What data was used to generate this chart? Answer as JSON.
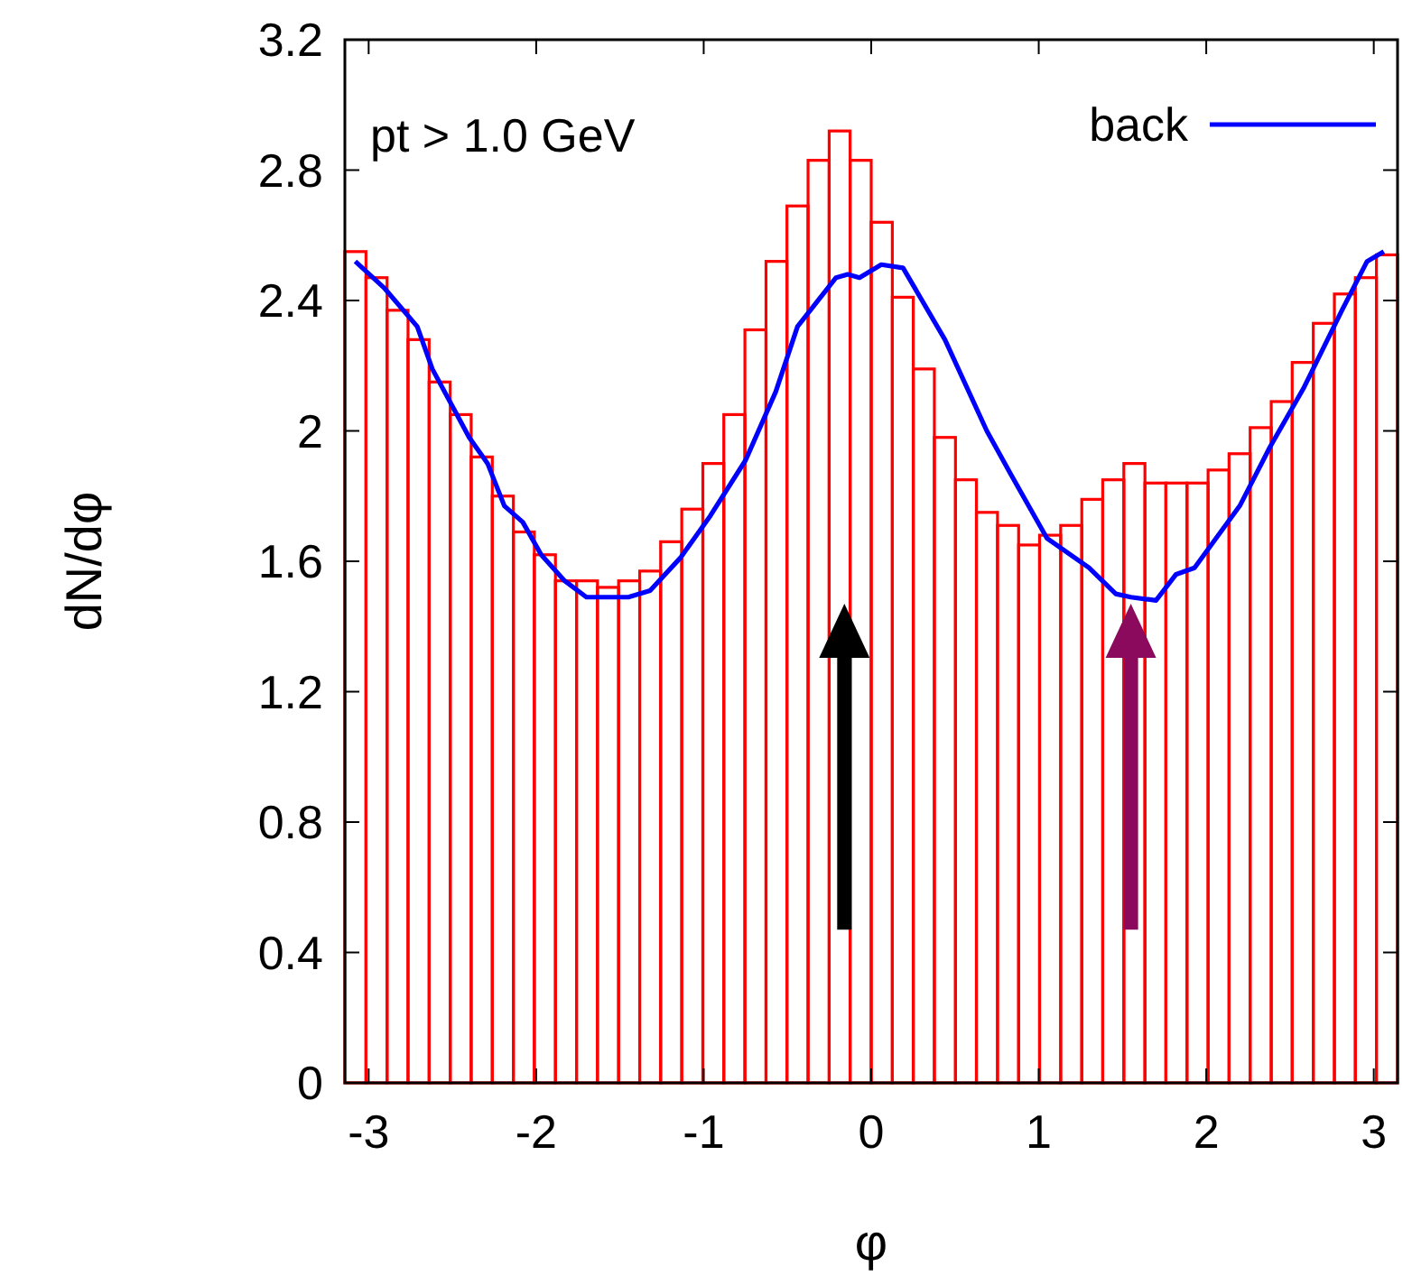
{
  "chart_data": {
    "type": "histogram",
    "xlabel": "φ",
    "ylabel": "dN/dφ",
    "annotations": [
      "pt > 1.0 GeV"
    ],
    "xlim": [
      -3.142,
      3.142
    ],
    "xticks": [
      -3,
      -2,
      -1,
      0,
      1,
      2,
      3
    ],
    "ylim": [
      0,
      3.2
    ],
    "yticks": [
      0,
      0.4,
      0.8,
      1.2,
      1.6,
      2,
      2.4,
      2.8,
      3.2
    ],
    "grid": false,
    "legend": "top right",
    "series": [
      {
        "color": "#ff0000",
        "bins": [
          -3.142,
          -3.016,
          -2.89,
          -2.765,
          -2.639,
          -2.513,
          -2.388,
          -2.262,
          -2.136,
          -2.011,
          -1.885,
          -1.759,
          -1.634,
          -1.508,
          -1.382,
          -1.257,
          -1.131,
          -1.005,
          -0.88,
          -0.754,
          -0.628,
          -0.503,
          -0.377,
          -0.251,
          -0.126,
          0,
          0.126,
          0.251,
          0.377,
          0.503,
          0.628,
          0.754,
          0.88,
          1.005,
          1.131,
          1.257,
          1.382,
          1.508,
          1.634,
          1.759,
          1.885,
          2.011,
          2.136,
          2.262,
          2.388,
          2.513,
          2.639,
          2.765,
          2.89,
          3.016,
          3.142
        ],
        "values": [
          2.55,
          2.47,
          2.37,
          2.28,
          2.15,
          2.05,
          1.92,
          1.8,
          1.69,
          1.62,
          1.54,
          1.54,
          1.52,
          1.54,
          1.57,
          1.66,
          1.76,
          1.9,
          2.05,
          2.31,
          2.52,
          2.69,
          2.83,
          2.92,
          2.83,
          2.64,
          2.41,
          2.19,
          1.98,
          1.85,
          1.75,
          1.71,
          1.65,
          1.68,
          1.71,
          1.79,
          1.85,
          1.9,
          1.84,
          1.84,
          1.84,
          1.88,
          1.93,
          2.01,
          2.09,
          2.21,
          2.33,
          2.42,
          2.47,
          2.54
        ]
      },
      {
        "type": "line",
        "name": "back",
        "color": "#0000ff",
        "x": [
          -3.08,
          -2.91,
          -2.71,
          -2.62,
          -2.4,
          -2.29,
          -2.19,
          -2.08,
          -1.97,
          -1.83,
          -1.7,
          -1.45,
          -1.32,
          -1.14,
          -0.96,
          -0.75,
          -0.57,
          -0.44,
          -0.21,
          -0.14,
          -0.07,
          0.06,
          0.19,
          0.44,
          0.69,
          0.83,
          1.05,
          1.3,
          1.46,
          1.55,
          1.7,
          1.82,
          1.93,
          2.2,
          2.38,
          2.58,
          2.81,
          2.96,
          3.06
        ],
        "values": [
          2.52,
          2.44,
          2.32,
          2.19,
          1.98,
          1.9,
          1.77,
          1.72,
          1.62,
          1.54,
          1.49,
          1.49,
          1.51,
          1.61,
          1.74,
          1.91,
          2.12,
          2.32,
          2.47,
          2.48,
          2.47,
          2.51,
          2.5,
          2.28,
          2,
          1.87,
          1.67,
          1.58,
          1.5,
          1.49,
          1.48,
          1.56,
          1.58,
          1.77,
          1.95,
          2.13,
          2.37,
          2.52,
          2.55
        ]
      }
    ]
  }
}
